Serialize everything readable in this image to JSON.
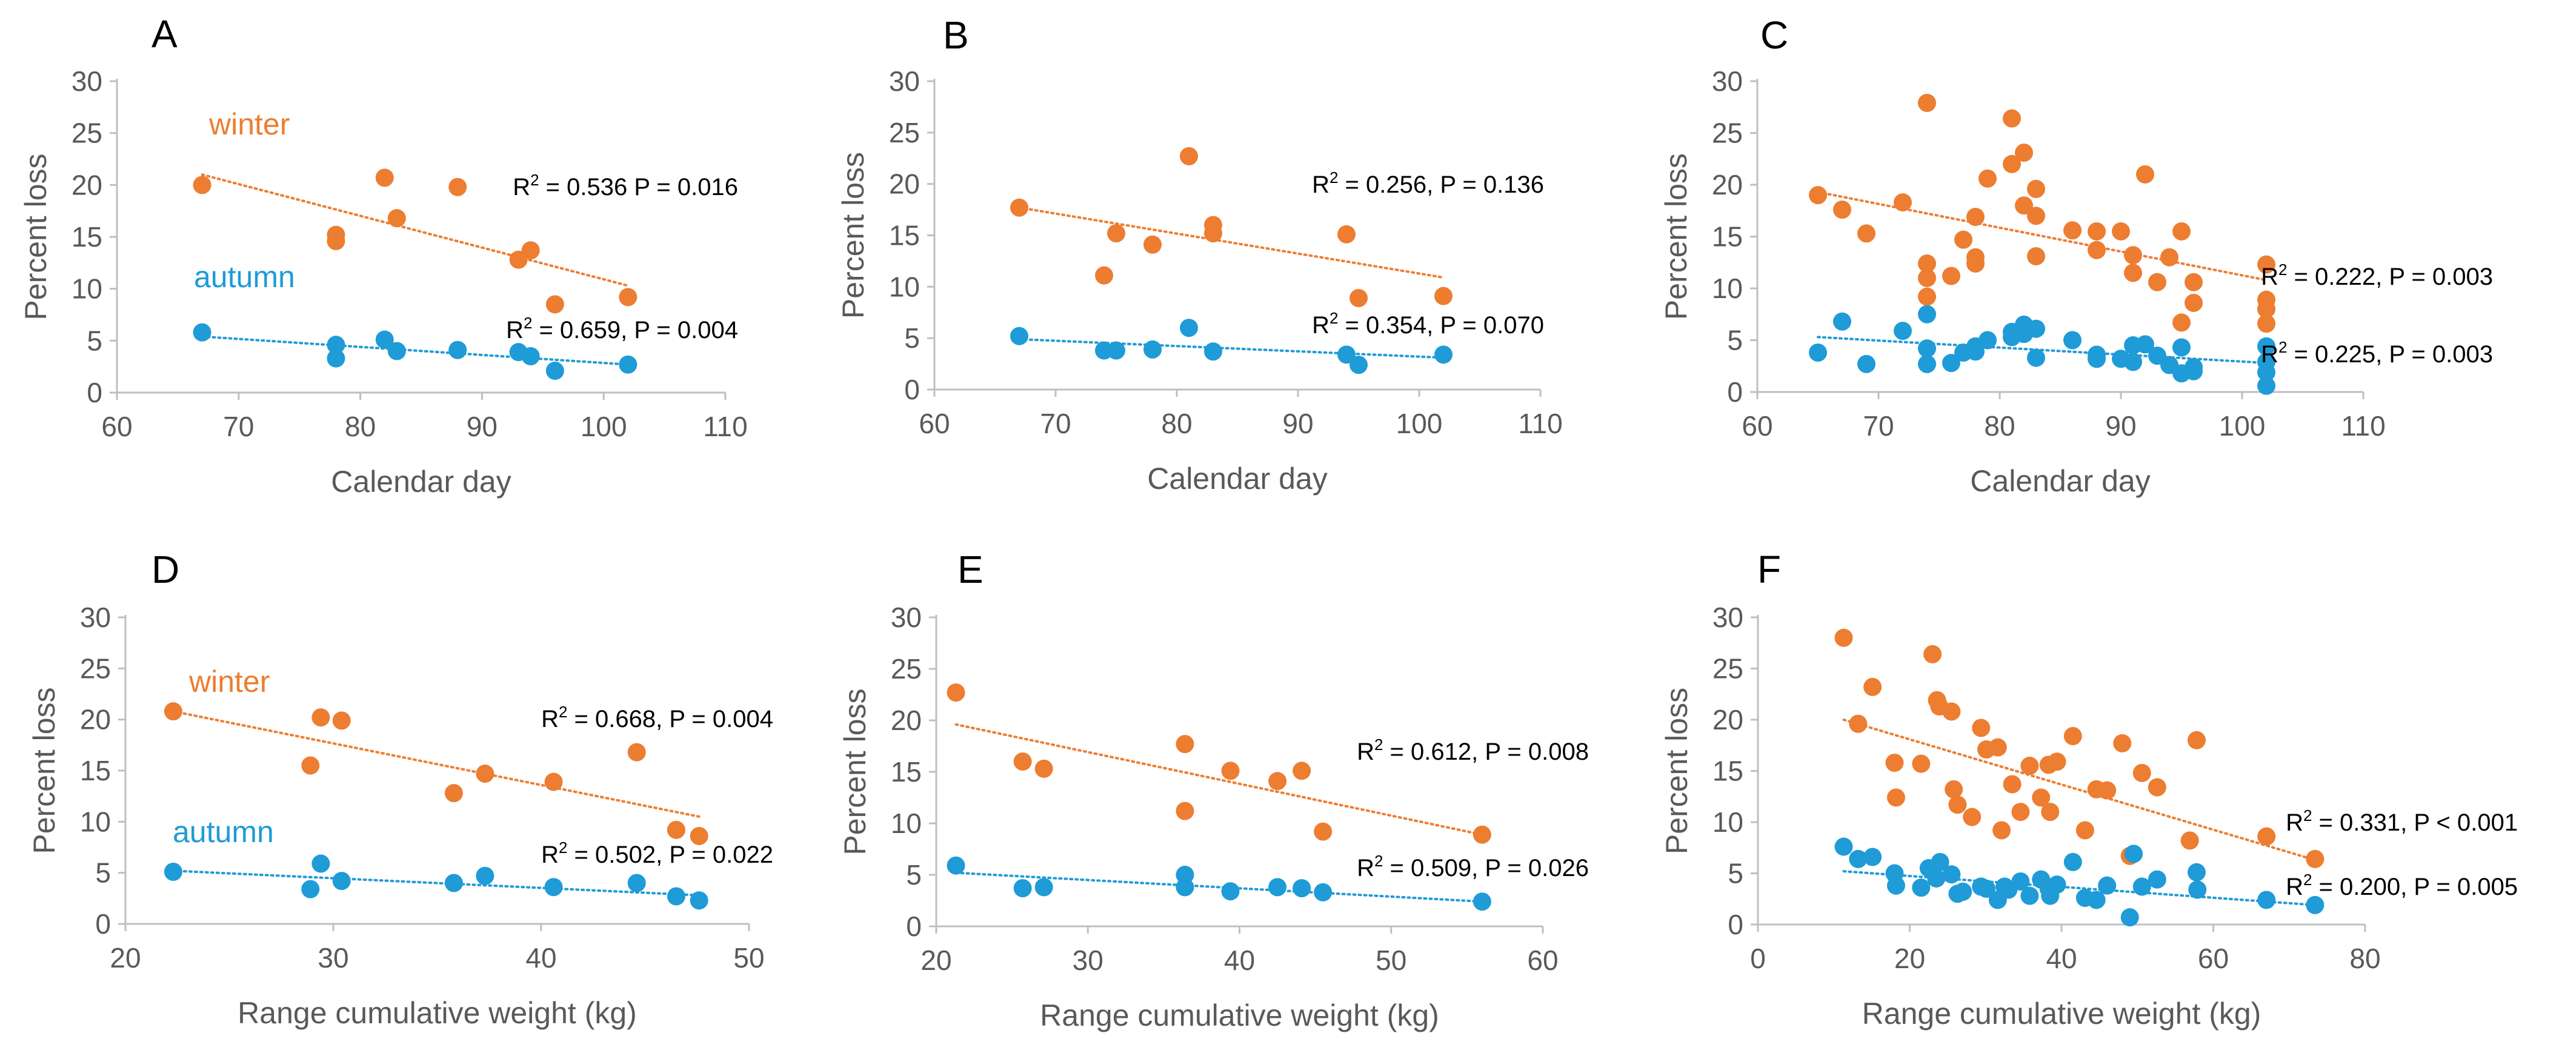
{
  "colors": {
    "winter": "#ED7D31",
    "autumn": "#1F9BD7"
  },
  "chart_data": [
    {
      "panel": "A",
      "type": "scatter",
      "xlabel": "Calendar day",
      "ylabel": "Percent loss",
      "xlim": [
        60,
        110
      ],
      "ylim": [
        0,
        30
      ],
      "xticks": [
        60,
        70,
        80,
        90,
        100,
        110
      ],
      "yticks": [
        0,
        5,
        10,
        15,
        20,
        25,
        30
      ],
      "series": [
        {
          "name": "winter",
          "label": "winter",
          "color": "#ED7D31",
          "x": [
            67,
            78,
            78,
            82,
            83,
            88,
            93,
            94,
            96,
            102
          ],
          "y": [
            20,
            15.2,
            14.6,
            20.7,
            16.8,
            19.8,
            12.8,
            13.7,
            8.5,
            9.2
          ],
          "trend": [
            [
              67,
              21.0
            ],
            [
              102,
              10.3
            ]
          ],
          "annotation": {
            "r2": "0.536",
            "p": "P = 0.016",
            "sep": " "
          }
        },
        {
          "name": "autumn",
          "label": "autumn",
          "color": "#1F9BD7",
          "x": [
            67,
            78,
            78,
            82,
            83,
            88,
            93,
            94,
            96,
            102
          ],
          "y": [
            5.8,
            4.6,
            3.3,
            5.1,
            4.0,
            4.1,
            3.9,
            3.5,
            2.1,
            2.7
          ],
          "trend": [
            [
              67,
              5.4
            ],
            [
              102,
              2.7
            ]
          ],
          "annotation": {
            "r2": "0.659",
            "p": "P = 0.004",
            "sep": ", "
          }
        }
      ]
    },
    {
      "panel": "B",
      "type": "scatter",
      "xlabel": "Calendar day",
      "ylabel": "Percent loss",
      "xlim": [
        60,
        110
      ],
      "ylim": [
        0,
        30
      ],
      "xticks": [
        60,
        70,
        80,
        90,
        100,
        110
      ],
      "yticks": [
        0,
        5,
        10,
        15,
        20,
        25,
        30
      ],
      "series": [
        {
          "name": "winter",
          "label": "",
          "color": "#ED7D31",
          "x": [
            67,
            74,
            75,
            78,
            81,
            83,
            83,
            94,
            95,
            102
          ],
          "y": [
            17.7,
            11.1,
            15.2,
            14.1,
            22.7,
            16.0,
            15.2,
            15.1,
            8.9,
            9.1
          ],
          "trend": [
            [
              67,
              17.7
            ],
            [
              102,
              10.9
            ]
          ],
          "annotation": {
            "r2": "0.256",
            "p": "P = 0.136",
            "sep": ", "
          }
        },
        {
          "name": "autumn",
          "label": "",
          "color": "#1F9BD7",
          "x": [
            67,
            74,
            75,
            78,
            81,
            83,
            94,
            95,
            102
          ],
          "y": [
            5.2,
            3.8,
            3.8,
            3.9,
            6.0,
            3.7,
            3.4,
            2.4,
            3.4
          ],
          "trend": [
            [
              67,
              4.9
            ],
            [
              102,
              3.1
            ]
          ],
          "annotation": {
            "r2": "0.354",
            "p": "P = 0.070",
            "sep": ", "
          }
        }
      ]
    },
    {
      "panel": "C",
      "type": "scatter",
      "xlabel": "Calendar day",
      "ylabel": "Percent loss",
      "xlim": [
        60,
        110
      ],
      "ylim": [
        0,
        30
      ],
      "xticks": [
        60,
        70,
        80,
        90,
        100,
        110
      ],
      "yticks": [
        0,
        5,
        10,
        15,
        20,
        25,
        30
      ],
      "series": [
        {
          "name": "winter",
          "label": "",
          "color": "#ED7D31",
          "x": [
            65,
            67,
            69,
            72,
            74,
            74,
            74,
            74,
            76,
            77,
            78,
            78,
            78,
            79,
            81,
            81,
            82,
            82,
            83,
            83,
            83,
            86,
            88,
            88,
            90,
            91,
            91,
            92,
            93,
            94,
            95,
            95,
            96,
            96,
            102,
            102,
            102,
            102
          ],
          "y": [
            19.0,
            17.6,
            15.3,
            18.3,
            27.9,
            12.4,
            11.0,
            9.2,
            11.2,
            14.7,
            16.9,
            13.0,
            12.4,
            20.6,
            26.4,
            22.0,
            23.1,
            18.0,
            19.6,
            17.0,
            13.1,
            15.6,
            15.5,
            13.7,
            15.5,
            13.2,
            11.5,
            21.0,
            10.6,
            13.0,
            15.5,
            6.7,
            10.6,
            8.6,
            12.3,
            8.9,
            8.0,
            6.6
          ],
          "trend": [
            [
              65,
              19.3
            ],
            [
              102,
              10.8
            ]
          ],
          "annotation": {
            "r2": "0.222",
            "p": "P = 0.003",
            "sep": ", "
          }
        },
        {
          "name": "autumn",
          "label": "",
          "color": "#1F9BD7",
          "x": [
            65,
            67,
            69,
            72,
            74,
            74,
            74,
            76,
            77,
            78,
            78,
            79,
            81,
            81,
            82,
            82,
            83,
            83,
            86,
            88,
            88,
            90,
            91,
            91,
            92,
            93,
            94,
            95,
            95,
            96,
            96,
            102,
            102,
            102,
            102
          ],
          "y": [
            3.8,
            6.8,
            2.7,
            5.9,
            7.5,
            4.2,
            2.7,
            2.8,
            3.8,
            3.9,
            4.4,
            5.0,
            5.8,
            5.3,
            6.5,
            5.6,
            6.1,
            3.3,
            5.0,
            3.6,
            3.2,
            3.2,
            2.9,
            4.5,
            4.6,
            3.5,
            2.6,
            4.3,
            1.8,
            2.4,
            2.0,
            4.4,
            2.9,
            1.9,
            0.6
          ],
          "trend": [
            [
              65,
              5.3
            ],
            [
              102,
              2.8
            ]
          ],
          "annotation": {
            "r2": "0.225",
            "p": "P = 0.003",
            "sep": ", "
          }
        }
      ]
    },
    {
      "panel": "D",
      "type": "scatter",
      "xlabel": "Range cumulative weight (kg)",
      "ylabel": "Percent loss",
      "xlim": [
        20,
        50
      ],
      "ylim": [
        0,
        30
      ],
      "xticks": [
        20,
        30,
        40,
        50
      ],
      "yticks": [
        0,
        5,
        10,
        15,
        20,
        25,
        30
      ],
      "series": [
        {
          "name": "winter",
          "label": "winter",
          "color": "#ED7D31",
          "x": [
            22.3,
            28.9,
            29.4,
            30.4,
            35.8,
            37.3,
            40.6,
            44.6,
            46.5,
            47.6
          ],
          "y": [
            20.8,
            15.5,
            20.2,
            19.9,
            12.8,
            14.7,
            13.9,
            16.8,
            9.2,
            8.6
          ],
          "trend": [
            [
              22.3,
              20.8
            ],
            [
              47.6,
              10.5
            ]
          ],
          "annotation": {
            "r2": "0.668",
            "p": "P = 0.004",
            "sep": ", "
          }
        },
        {
          "name": "autumn",
          "label": "autumn",
          "color": "#1F9BD7",
          "x": [
            22.3,
            28.9,
            29.4,
            30.4,
            35.8,
            37.3,
            40.6,
            44.6,
            46.5,
            47.6
          ],
          "y": [
            5.1,
            3.4,
            5.9,
            4.2,
            4.0,
            4.7,
            3.6,
            4.0,
            2.7,
            2.3
          ],
          "trend": [
            [
              22.3,
              5.2
            ],
            [
              47.6,
              2.8
            ]
          ],
          "annotation": {
            "r2": "0.502",
            "p": "P = 0.022",
            "sep": ", "
          }
        }
      ]
    },
    {
      "panel": "E",
      "type": "scatter",
      "xlabel": "Range cumulative weight (kg)",
      "ylabel": "Percent loss",
      "xlim": [
        20,
        60
      ],
      "ylim": [
        0,
        30
      ],
      "xticks": [
        20,
        30,
        40,
        50,
        60
      ],
      "yticks": [
        0,
        5,
        10,
        15,
        20,
        25,
        30
      ],
      "series": [
        {
          "name": "winter",
          "label": "",
          "color": "#ED7D31",
          "x": [
            21.3,
            25.7,
            27.1,
            36.4,
            36.4,
            39.4,
            42.5,
            44.1,
            45.5,
            56.0
          ],
          "y": [
            22.7,
            16.0,
            15.3,
            17.7,
            11.2,
            15.1,
            14.1,
            15.1,
            9.2,
            8.9
          ],
          "trend": [
            [
              21.3,
              19.6
            ],
            [
              56.0,
              8.9
            ]
          ],
          "annotation": {
            "r2": "0.612",
            "p": "P = 0.008",
            "sep": ", "
          }
        },
        {
          "name": "autumn",
          "label": "",
          "color": "#1F9BD7",
          "x": [
            21.3,
            25.7,
            27.1,
            36.4,
            36.4,
            39.4,
            42.5,
            44.1,
            45.5,
            56.0
          ],
          "y": [
            5.9,
            3.7,
            3.8,
            5.0,
            3.8,
            3.4,
            3.8,
            3.7,
            3.3,
            2.4
          ],
          "trend": [
            [
              21.3,
              5.2
            ],
            [
              56.0,
              2.4
            ]
          ],
          "annotation": {
            "r2": "0.509",
            "p": "P = 0.026",
            "sep": ", "
          }
        }
      ]
    },
    {
      "panel": "F",
      "type": "scatter",
      "xlabel": "Range cumulative weight (kg)",
      "ylabel": "Percent loss",
      "xlim": [
        0,
        80
      ],
      "ylim": [
        0,
        30
      ],
      "xticks": [
        0,
        20,
        40,
        60,
        80
      ],
      "yticks": [
        0,
        5,
        10,
        15,
        20,
        25,
        30
      ],
      "series": [
        {
          "name": "winter",
          "label": "",
          "color": "#ED7D31",
          "x": [
            11.3,
            13.2,
            15.1,
            18.0,
            18.2,
            21.5,
            23.0,
            23.6,
            23.9,
            25.5,
            25.8,
            26.3,
            28.2,
            29.4,
            30.1,
            31.6,
            32.1,
            33.5,
            34.6,
            35.8,
            37.3,
            38.3,
            38.5,
            39.4,
            41.5,
            43.1,
            44.6,
            46.0,
            48.0,
            49.0,
            50.6,
            52.6,
            56.9,
            57.8,
            67.0,
            73.4
          ],
          "y": [
            28.0,
            19.6,
            23.2,
            15.8,
            12.4,
            15.7,
            26.4,
            21.9,
            21.3,
            20.8,
            13.2,
            11.7,
            10.5,
            19.2,
            17.1,
            17.3,
            9.2,
            13.7,
            11.0,
            15.5,
            12.4,
            15.6,
            11.0,
            15.9,
            18.4,
            9.2,
            13.2,
            13.1,
            17.7,
            6.7,
            14.8,
            13.4,
            8.2,
            18.0,
            8.6,
            6.4
          ],
          "trend": [
            [
              11.3,
              20.0
            ],
            [
              73.4,
              6.3
            ]
          ],
          "annotation": {
            "r2": "0.331",
            "p": "P < 0.001",
            "sep": ", "
          }
        },
        {
          "name": "autumn",
          "label": "",
          "color": "#1F9BD7",
          "x": [
            11.3,
            13.2,
            15.1,
            18.0,
            18.2,
            21.5,
            22.5,
            23.5,
            24.0,
            25.5,
            26.3,
            27.0,
            29.4,
            30.1,
            31.6,
            32.5,
            33.0,
            34.6,
            35.8,
            37.3,
            38.3,
            38.5,
            39.4,
            41.5,
            43.1,
            44.6,
            46.0,
            49.0,
            49.5,
            50.6,
            52.6,
            57.8,
            57.9,
            67.0,
            73.4
          ],
          "y": [
            7.6,
            6.4,
            6.6,
            5.0,
            3.8,
            3.6,
            5.5,
            4.5,
            6.1,
            4.9,
            3.0,
            3.2,
            3.7,
            3.5,
            2.4,
            3.7,
            3.4,
            4.2,
            2.8,
            4.4,
            3.5,
            2.8,
            3.9,
            6.1,
            2.6,
            2.4,
            3.8,
            0.7,
            6.9,
            3.7,
            4.4,
            5.1,
            3.4,
            2.4,
            1.9
          ],
          "trend": [
            [
              11.3,
              5.2
            ],
            [
              73.4,
              1.9
            ]
          ],
          "annotation": {
            "r2": "0.200",
            "p": "P = 0.005",
            "sep": ", "
          }
        }
      ]
    }
  ]
}
